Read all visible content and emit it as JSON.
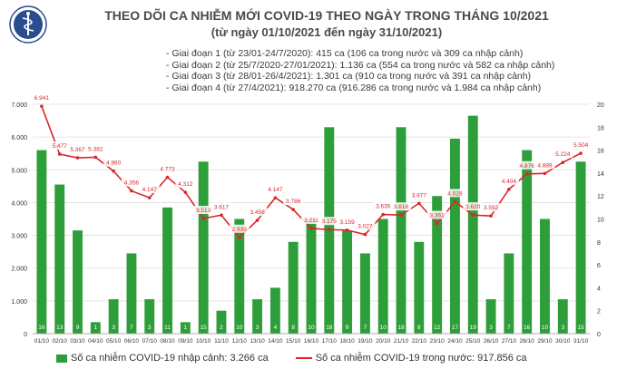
{
  "header": {
    "title": "THEO DÕI CA NHIỄM MỚI COVID-19 THEO NGÀY TRONG THÁNG 10/2021",
    "subtitle": "(từ ngày 01/10/2021 đến ngày 31/10/2021)",
    "phases": [
      "- Giai đoạn 1 (từ 23/01-24/7/2020): 415 ca (106 ca trong nước và 309 ca nhập cảnh)",
      "- Giai đoạn 2 (từ 25/7/2020-27/01/2021): 1.136 ca (554 ca trong nước và 582 ca nhập cảnh)",
      "- Giai đoạn 3 (từ 28/01-26/4/2021): 1.301 ca (910 ca trong nước và 391 ca nhập cảnh)",
      "- Giai đoạn 4 (từ 27/4/2021): 918.270 ca (916.286 ca trong nước và 1.984 ca nhập cảnh)"
    ]
  },
  "colors": {
    "bar": "#2e9e3a",
    "line": "#d9262a",
    "grid": "#dddddd",
    "text": "#333333"
  },
  "chart_data": {
    "type": "bar+line",
    "categories": [
      "01/10",
      "02/10",
      "03/10",
      "04/10",
      "05/10",
      "06/10",
      "07/10",
      "08/10",
      "09/10",
      "10/10",
      "11/10",
      "12/10",
      "13/10",
      "14/10",
      "15/10",
      "16/10",
      "17/10",
      "18/10",
      "19/10",
      "20/10",
      "21/10",
      "22/10",
      "23/10",
      "24/10",
      "25/10",
      "26/10",
      "27/10",
      "28/10",
      "29/10",
      "30/10",
      "31/10"
    ],
    "series": [
      {
        "name": "Số ca nhiễm COVID-19 nhập cảnh: 3.266 ca",
        "kind": "bar",
        "axis": "right",
        "values": [
          16,
          13,
          9,
          1,
          3,
          7,
          3,
          11,
          1,
          15,
          2,
          10,
          3,
          4,
          8,
          10,
          18,
          9,
          7,
          10,
          18,
          8,
          12,
          17,
          19,
          3,
          7,
          16,
          10,
          3,
          15
        ],
        "labels": [
          "16",
          "13",
          "9",
          "1",
          "3",
          "7",
          "3",
          "11",
          "1",
          "15",
          "2",
          "10",
          "3",
          "4",
          "8",
          "10",
          "18",
          "9",
          "7",
          "10",
          "18",
          "8",
          "12",
          "17",
          "19",
          "3",
          "7",
          "16",
          "10",
          "3",
          "15"
        ]
      },
      {
        "name": "Số ca nhiễm COVID-19 trong nước: 917.856 ca",
        "kind": "line",
        "axis": "left",
        "values": [
          6941,
          5477,
          5367,
          5382,
          4960,
          4356,
          4147,
          4773,
          4312,
          3513,
          3617,
          2939,
          3458,
          4147,
          3786,
          3211,
          3175,
          3159,
          3027,
          3635,
          3618,
          3977,
          3361,
          4028,
          3620,
          3592,
          4404,
          4876,
          4889,
          5224,
          5504
        ],
        "labels": [
          "6.941",
          "5.477",
          "5.367",
          "5.382",
          "4.960",
          "4.356",
          "4.147",
          "4.773",
          "4.312",
          "3.513",
          "3.617",
          "2.939",
          "3.458",
          "4.147",
          "3.786",
          "3.211",
          "3.175",
          "3.159",
          "3.027",
          "3.635",
          "3.618",
          "3.977",
          "3.361",
          "4.028",
          "3.620",
          "3.592",
          "4.404",
          "4.876",
          "4.889",
          "5.224",
          "5.504"
        ]
      }
    ],
    "y_left": {
      "range": [
        0,
        7000
      ],
      "ticks": [
        0,
        1000,
        2000,
        3000,
        4000,
        5000,
        6000,
        7000
      ],
      "tick_labels": [
        "0",
        "1.000",
        "2.000",
        "3.000",
        "4.000",
        "5.000",
        "6.000",
        "7.000"
      ]
    },
    "y_right": {
      "range": [
        0,
        20
      ],
      "ticks": [
        0,
        2,
        4,
        6,
        8,
        10,
        12,
        14,
        16,
        18,
        20
      ],
      "tick_labels": [
        "0",
        "2",
        "4",
        "6",
        "8",
        "10",
        "12",
        "14",
        "16",
        "18",
        "20"
      ]
    },
    "grid": true,
    "legend": "bottom"
  }
}
